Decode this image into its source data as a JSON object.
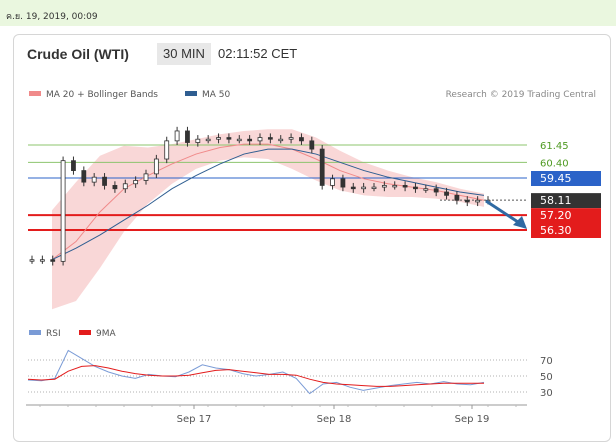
{
  "timestamp": "ค.ย. 19, 2019, 00:09",
  "header": {
    "title": "Crude Oil (WTI)",
    "timeframe": "30 MIN",
    "clock": "02:11:52 CET"
  },
  "legend": {
    "ma20": "MA 20 + Bollinger Bands",
    "ma50": "MA 50",
    "credit": "Research © 2019 Trading Central"
  },
  "rsi_legend": {
    "rsi": "RSI",
    "ma9": "9MA"
  },
  "colors": {
    "ma20": "#f08a8a",
    "ma50": "#2f5e91",
    "band": "#f7c9c9",
    "resistance": "#8dc46e",
    "level_blue": "#2b63c8",
    "support": "#e31c1c",
    "current": "#333333",
    "arrow": "#2f6aa3"
  },
  "chart_data": [
    {
      "type": "line",
      "x_ticks": [
        "Sep 17",
        "Sep 18",
        "Sep 19"
      ],
      "price_axis_range": [
        54.0,
        63.0
      ],
      "price_levels": [
        {
          "value": "61.45",
          "kind": "resistance"
        },
        {
          "value": "60.40",
          "kind": "resistance"
        },
        {
          "value": "59.45",
          "kind": "pivot"
        },
        {
          "value": "58.11",
          "kind": "current"
        },
        {
          "value": "57.20",
          "kind": "support"
        },
        {
          "value": "56.30",
          "kind": "support"
        }
      ],
      "series": [
        {
          "name": "MA 20 + Bollinger Bands",
          "values": [
            54.5,
            55.6,
            57.4,
            58.8,
            59.6,
            60.3,
            60.9,
            61.3,
            61.5,
            61.5,
            61.2,
            60.6,
            59.9,
            59.4,
            59.1,
            58.9,
            58.7,
            58.4,
            58.1
          ]
        },
        {
          "name": "MA 50",
          "values": [
            54.5,
            55.2,
            56.0,
            56.9,
            57.8,
            58.8,
            59.6,
            60.3,
            60.9,
            61.2,
            61.2,
            60.9,
            60.4,
            59.9,
            59.5,
            59.2,
            58.9,
            58.6,
            58.4
          ]
        }
      ],
      "candles_close": [
        54.5,
        54.5,
        54.4,
        60.5,
        59.9,
        59.2,
        59.5,
        59.0,
        58.8,
        59.1,
        59.3,
        59.7,
        60.6,
        61.7,
        62.3,
        61.6,
        61.8,
        61.8,
        61.9,
        61.8,
        61.8,
        61.7,
        61.9,
        61.8,
        61.8,
        61.9,
        61.7,
        61.2,
        59.0,
        59.4,
        58.9,
        58.8,
        58.9,
        58.9,
        59.0,
        59.0,
        58.9,
        58.8,
        58.8,
        58.6,
        58.4,
        58.1,
        58.0,
        58.1,
        58.1
      ],
      "annotation": "forecast arrow pointing down toward 56.30"
    },
    {
      "type": "line",
      "y_ticks": [
        "70",
        "50",
        "30"
      ],
      "ylim": [
        20,
        90
      ],
      "series": [
        {
          "name": "RSI",
          "values": [
            45,
            44,
            47,
            82,
            72,
            62,
            55,
            50,
            47,
            52,
            50,
            49,
            55,
            64,
            60,
            58,
            53,
            50,
            52,
            55,
            47,
            28,
            40,
            42,
            36,
            32,
            35,
            38,
            40,
            42,
            40,
            43,
            40,
            39,
            42
          ]
        },
        {
          "name": "9MA",
          "values": [
            46,
            45,
            46,
            56,
            62,
            63,
            60,
            56,
            53,
            51,
            50,
            50,
            51,
            54,
            57,
            58,
            56,
            54,
            52,
            52,
            51,
            46,
            42,
            40,
            39,
            38,
            37,
            37,
            38,
            39,
            40,
            41,
            41,
            41,
            41
          ]
        }
      ]
    }
  ]
}
